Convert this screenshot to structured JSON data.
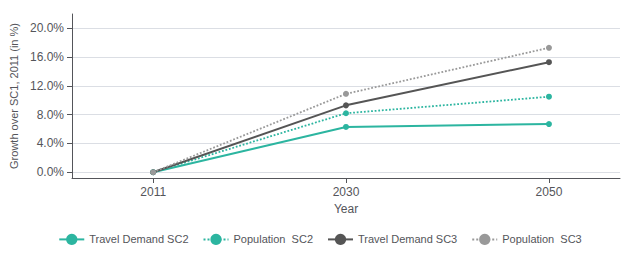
{
  "chart_data": {
    "type": "line",
    "xlabel": "Year",
    "ylabel": "Growth over SC1, 2011 (in %)",
    "x": [
      2011,
      2030,
      2050
    ],
    "series": [
      {
        "name": "Travel Demand SC2",
        "color": "#2CB5A0",
        "values": [
          0.0,
          6.3,
          6.7
        ],
        "line_style": "solid",
        "marker": "circle"
      },
      {
        "name": "Population  SC2",
        "color": "#2CB5A0",
        "values": [
          0.0,
          8.2,
          10.5
        ],
        "line_style": "dotted",
        "marker": "circle"
      },
      {
        "name": "Travel Demand SC3",
        "color": "#555555",
        "values": [
          0.0,
          9.3,
          15.3
        ],
        "line_style": "solid",
        "marker": "circle"
      },
      {
        "name": "Population  SC3",
        "color": "#999999",
        "values": [
          0.0,
          10.9,
          17.3
        ],
        "line_style": "dotted",
        "marker": "circle"
      }
    ],
    "xlim": [
      2003,
      2057
    ],
    "xticks": [
      2011,
      2030,
      2050
    ],
    "ylim": [
      -0.8,
      22.0
    ],
    "yticks": [
      {
        "value": 0.0,
        "label": "0.0%"
      },
      {
        "value": 4.0,
        "label": "4.0%"
      },
      {
        "value": 8.0,
        "label": "8.0%"
      },
      {
        "value": 12.0,
        "label": "12.0%"
      },
      {
        "value": 16.0,
        "label": "16.0%"
      },
      {
        "value": 20.0,
        "label": "20.0%"
      }
    ],
    "grid": true,
    "legend": "bottom"
  }
}
